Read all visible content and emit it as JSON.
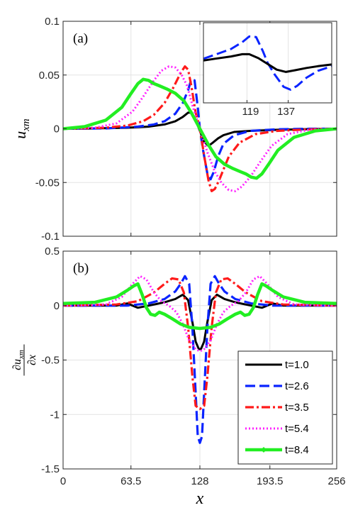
{
  "chart_data": [
    {
      "panel": "(a)",
      "type": "line",
      "xlabel": "",
      "ylabel": "u_xm",
      "xlim": [
        0,
        256
      ],
      "ylim": [
        -0.1,
        0.1
      ],
      "xticks": [
        0,
        63.5,
        128,
        193.5,
        256
      ],
      "yticks": [
        -0.1,
        -0.05,
        0,
        0.05,
        0.1
      ],
      "ytick_labels": [
        "-0.1",
        "-0.05",
        "0",
        "0.05",
        "0.1"
      ],
      "grid": true,
      "series": [
        {
          "name": "t=1.0",
          "color": "#000000",
          "style": "solid",
          "x": [
            0,
            30,
            60,
            80,
            95,
            105,
            112,
            117,
            120,
            124,
            128,
            132,
            136,
            140,
            145,
            150,
            160,
            175,
            200,
            230,
            256
          ],
          "y": [
            0,
            0.0003,
            0.001,
            0.002,
            0.004,
            0.007,
            0.011,
            0.015,
            0.015,
            0.008,
            -0.002,
            -0.012,
            -0.016,
            -0.013,
            -0.009,
            -0.006,
            -0.003,
            -0.002,
            -0.001,
            -0.0003,
            0
          ]
        },
        {
          "name": "t=2.6",
          "color": "#0a24ff",
          "style": "dashed",
          "x": [
            0,
            40,
            70,
            85,
            95,
            105,
            112,
            117,
            120,
            123,
            126,
            128,
            131,
            135,
            138,
            141,
            145,
            150,
            160,
            175,
            200,
            230,
            256
          ],
          "y": [
            0,
            0.0003,
            0.002,
            0.004,
            0.007,
            0.014,
            0.024,
            0.036,
            0.046,
            0.045,
            0.02,
            0.0,
            -0.02,
            -0.042,
            -0.047,
            -0.04,
            -0.026,
            -0.014,
            -0.006,
            -0.002,
            -0.0005,
            0,
            0
          ]
        },
        {
          "name": "t=3.5",
          "color": "#ff1a1a",
          "style": "dashdot",
          "x": [
            0,
            40,
            60,
            75,
            85,
            95,
            103,
            110,
            114,
            117,
            120,
            124,
            128,
            132,
            136,
            139,
            142,
            146,
            150,
            155,
            165,
            180,
            200,
            230,
            256
          ],
          "y": [
            0,
            0.001,
            0.003,
            0.007,
            0.013,
            0.024,
            0.038,
            0.052,
            0.058,
            0.055,
            0.04,
            0.015,
            0.0,
            -0.025,
            -0.048,
            -0.058,
            -0.056,
            -0.048,
            -0.038,
            -0.026,
            -0.013,
            -0.005,
            -0.002,
            -0.0005,
            0
          ]
        },
        {
          "name": "t=5.4",
          "color": "#ff22ff",
          "style": "dotted",
          "x": [
            0,
            30,
            50,
            65,
            75,
            85,
            92,
            99,
            105,
            111,
            116,
            121,
            128,
            135,
            142,
            148,
            155,
            161,
            167,
            175,
            185,
            195,
            210,
            230,
            256
          ],
          "y": [
            0,
            0.001,
            0.005,
            0.016,
            0.03,
            0.045,
            0.054,
            0.058,
            0.057,
            0.05,
            0.04,
            0.022,
            0.0,
            -0.022,
            -0.04,
            -0.05,
            -0.057,
            -0.058,
            -0.054,
            -0.045,
            -0.03,
            -0.016,
            -0.005,
            -0.001,
            0
          ]
        },
        {
          "name": "t=8.4",
          "color": "#22ee22",
          "style": "solid-marker",
          "x": [
            0,
            20,
            40,
            55,
            63,
            70,
            75,
            80,
            85,
            90,
            97,
            105,
            113,
            120,
            128,
            136,
            143,
            151,
            159,
            166,
            171,
            176,
            181,
            186,
            193,
            201,
            216,
            236,
            256
          ],
          "y": [
            0,
            0.002,
            0.008,
            0.02,
            0.032,
            0.042,
            0.046,
            0.045,
            0.042,
            0.04,
            0.037,
            0.033,
            0.026,
            0.015,
            0.0,
            -0.015,
            -0.026,
            -0.033,
            -0.037,
            -0.04,
            -0.042,
            -0.045,
            -0.046,
            -0.042,
            -0.032,
            -0.02,
            -0.008,
            -0.002,
            0
          ]
        }
      ]
    },
    {
      "panel": "inset",
      "type": "line",
      "xtick_labels": [
        "119",
        "137"
      ],
      "note": "zoom of panel (a) near x=128",
      "grid": true
    },
    {
      "panel": "(b)",
      "type": "line",
      "xlabel": "x",
      "ylabel": "∂u_xm/∂x",
      "xlim": [
        0,
        256
      ],
      "ylim": [
        -1.5,
        0.5
      ],
      "xticks": [
        0,
        63.5,
        128,
        193.5,
        256
      ],
      "xtick_labels": [
        "0",
        "63.5",
        "128",
        "193.5",
        "256"
      ],
      "yticks": [
        -1.5,
        -1,
        -0.5,
        0,
        0.5
      ],
      "ytick_labels": [
        "-1.5",
        "-1",
        "-0.5",
        "0",
        "0.5"
      ],
      "grid": true,
      "legend_position": "bottom-right",
      "series": [
        {
          "name": "t=1.0",
          "color": "#000000",
          "style": "solid",
          "x": [
            0,
            50,
            60,
            70,
            80,
            95,
            105,
            112,
            117,
            121,
            124,
            127,
            128,
            129,
            132,
            135,
            139,
            144,
            151,
            161,
            176,
            186,
            196,
            206,
            256
          ],
          "y": [
            0,
            0.0,
            0.02,
            -0.02,
            0.0,
            0.03,
            0.06,
            0.1,
            0.05,
            -0.15,
            -0.33,
            -0.4,
            -0.4,
            -0.4,
            -0.33,
            -0.15,
            0.05,
            0.1,
            0.06,
            0.03,
            0.0,
            -0.02,
            0.02,
            0.0,
            0
          ]
        },
        {
          "name": "t=2.6",
          "color": "#0a24ff",
          "style": "dashed",
          "x": [
            0,
            60,
            80,
            95,
            105,
            110,
            114,
            118,
            121,
            124,
            126,
            128,
            130,
            132,
            135,
            138,
            142,
            146,
            151,
            161,
            176,
            196,
            256
          ],
          "y": [
            0,
            0.0,
            0.02,
            0.06,
            0.13,
            0.2,
            0.27,
            0.2,
            -0.2,
            -0.8,
            -1.2,
            -1.26,
            -1.2,
            -0.8,
            -0.2,
            0.2,
            0.27,
            0.2,
            0.13,
            0.06,
            0.02,
            0.0,
            0
          ]
        },
        {
          "name": "t=3.5",
          "color": "#ff1a1a",
          "style": "dashdot",
          "x": [
            0,
            50,
            70,
            85,
            95,
            102,
            108,
            113,
            117,
            121,
            124,
            128,
            132,
            135,
            139,
            143,
            148,
            154,
            161,
            171,
            186,
            206,
            256
          ],
          "y": [
            0,
            0.01,
            0.04,
            0.12,
            0.2,
            0.25,
            0.24,
            0.12,
            -0.2,
            -0.65,
            -0.92,
            -0.95,
            -0.92,
            -0.65,
            -0.2,
            0.12,
            0.24,
            0.25,
            0.2,
            0.12,
            0.04,
            0.01,
            0
          ]
        },
        {
          "name": "t=5.4",
          "color": "#ff22ff",
          "style": "dotted",
          "x": [
            0,
            40,
            55,
            65,
            72,
            78,
            85,
            92,
            99,
            106,
            112,
            118,
            124,
            128,
            132,
            138,
            144,
            150,
            157,
            164,
            171,
            178,
            184,
            191,
            201,
            216,
            256
          ],
          "y": [
            0,
            0.01,
            0.08,
            0.2,
            0.27,
            0.24,
            0.12,
            0.04,
            0.0,
            -0.06,
            -0.17,
            -0.32,
            -0.4,
            -0.42,
            -0.4,
            -0.32,
            -0.17,
            -0.06,
            0.0,
            0.04,
            0.12,
            0.24,
            0.27,
            0.2,
            0.08,
            0.01,
            0
          ]
        },
        {
          "name": "t=8.4",
          "color": "#22ee22",
          "style": "solid-marker",
          "x": [
            0,
            30,
            50,
            60,
            66,
            70,
            74,
            78,
            82,
            86,
            90,
            95,
            102,
            110,
            118,
            128,
            138,
            146,
            154,
            161,
            166,
            170,
            174,
            178,
            182,
            186,
            190,
            196,
            206,
            226,
            256
          ],
          "y": [
            0.02,
            0.03,
            0.08,
            0.14,
            0.18,
            0.2,
            0.1,
            -0.02,
            -0.08,
            -0.09,
            -0.06,
            -0.08,
            -0.12,
            -0.17,
            -0.2,
            -0.21,
            -0.2,
            -0.17,
            -0.12,
            -0.08,
            -0.06,
            -0.09,
            -0.08,
            -0.02,
            0.1,
            0.2,
            0.18,
            0.14,
            0.08,
            0.03,
            0.02
          ]
        }
      ]
    }
  ]
}
